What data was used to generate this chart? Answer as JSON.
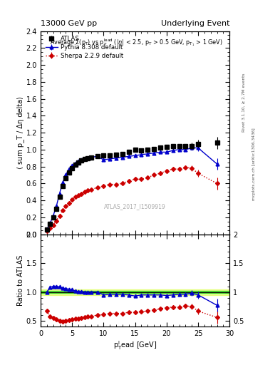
{
  "title_left": "13000 GeV pp",
  "title_right": "Underlying Event",
  "annotation": "ATLAS_2017_I1509919",
  "right_label_top": "Rivet 3.1.10, ≥ 2.7M events",
  "right_label_bot": "mcplots.cern.ch [arXiv:1306.3436]",
  "ylabel_main": "⟨ sum p_T / Δη delta⟩",
  "ylabel_ratio": "Ratio to ATLAS",
  "xlabel": "p_T^l ead [GeV]",
  "ylim_main": [
    0.0,
    2.4
  ],
  "ylim_ratio": [
    0.4,
    2.0
  ],
  "yticks_main": [
    0.0,
    0.2,
    0.4,
    0.6,
    0.8,
    1.0,
    1.2,
    1.4,
    1.6,
    1.8,
    2.0,
    2.2,
    2.4
  ],
  "yticks_ratio": [
    0.5,
    1.0,
    1.5,
    2.0
  ],
  "xlim": [
    0,
    30
  ],
  "xticks": [
    0,
    5,
    10,
    15,
    20,
    25,
    30
  ],
  "atlas_x": [
    1.0,
    1.5,
    2.0,
    2.5,
    3.0,
    3.5,
    4.0,
    4.5,
    5.0,
    5.5,
    6.0,
    6.5,
    7.0,
    7.5,
    8.0,
    9.0,
    10.0,
    11.0,
    12.0,
    13.0,
    14.0,
    15.0,
    16.0,
    17.0,
    18.0,
    19.0,
    20.0,
    21.0,
    22.0,
    23.0,
    24.0,
    25.0,
    28.0
  ],
  "atlas_y": [
    0.06,
    0.12,
    0.2,
    0.3,
    0.44,
    0.57,
    0.66,
    0.73,
    0.78,
    0.82,
    0.85,
    0.87,
    0.89,
    0.9,
    0.91,
    0.92,
    0.93,
    0.93,
    0.94,
    0.95,
    0.97,
    1.0,
    0.99,
    1.0,
    1.01,
    1.02,
    1.03,
    1.04,
    1.04,
    1.04,
    1.04,
    1.07,
    1.08
  ],
  "atlas_yerr": [
    0.01,
    0.01,
    0.01,
    0.01,
    0.01,
    0.01,
    0.01,
    0.01,
    0.01,
    0.01,
    0.01,
    0.01,
    0.01,
    0.01,
    0.01,
    0.01,
    0.01,
    0.01,
    0.01,
    0.01,
    0.01,
    0.02,
    0.02,
    0.02,
    0.02,
    0.02,
    0.02,
    0.03,
    0.03,
    0.03,
    0.04,
    0.05,
    0.07
  ],
  "pythia_x": [
    1.0,
    1.5,
    2.0,
    2.5,
    3.0,
    3.5,
    4.0,
    4.5,
    5.0,
    5.5,
    6.0,
    6.5,
    7.0,
    7.5,
    8.0,
    9.0,
    10.0,
    11.0,
    12.0,
    13.0,
    14.0,
    15.0,
    16.0,
    17.0,
    18.0,
    19.0,
    20.0,
    21.0,
    22.0,
    23.0,
    24.0,
    25.0,
    28.0
  ],
  "pythia_y": [
    0.06,
    0.13,
    0.22,
    0.33,
    0.48,
    0.61,
    0.7,
    0.77,
    0.81,
    0.84,
    0.86,
    0.88,
    0.89,
    0.9,
    0.91,
    0.92,
    0.88,
    0.89,
    0.9,
    0.91,
    0.92,
    0.93,
    0.94,
    0.95,
    0.96,
    0.97,
    0.97,
    0.99,
    1.0,
    1.0,
    1.02,
    1.02,
    0.83
  ],
  "pythia_yerr": [
    0.005,
    0.005,
    0.005,
    0.005,
    0.005,
    0.005,
    0.005,
    0.005,
    0.005,
    0.005,
    0.005,
    0.005,
    0.005,
    0.005,
    0.005,
    0.005,
    0.01,
    0.01,
    0.01,
    0.01,
    0.01,
    0.01,
    0.01,
    0.01,
    0.01,
    0.01,
    0.01,
    0.02,
    0.02,
    0.02,
    0.03,
    0.04,
    0.07
  ],
  "sherpa_x": [
    1.0,
    1.5,
    2.0,
    2.5,
    3.0,
    3.5,
    4.0,
    4.5,
    5.0,
    5.5,
    6.0,
    6.5,
    7.0,
    7.5,
    8.0,
    9.0,
    10.0,
    11.0,
    12.0,
    13.0,
    14.0,
    15.0,
    16.0,
    17.0,
    18.0,
    19.0,
    20.0,
    21.0,
    22.0,
    23.0,
    24.0,
    25.0,
    28.0
  ],
  "sherpa_y": [
    0.04,
    0.07,
    0.11,
    0.16,
    0.22,
    0.28,
    0.33,
    0.37,
    0.41,
    0.44,
    0.46,
    0.48,
    0.5,
    0.52,
    0.53,
    0.55,
    0.57,
    0.59,
    0.59,
    0.6,
    0.63,
    0.65,
    0.65,
    0.67,
    0.7,
    0.72,
    0.75,
    0.77,
    0.77,
    0.79,
    0.78,
    0.72,
    0.6
  ],
  "sherpa_yerr": [
    0.005,
    0.005,
    0.005,
    0.005,
    0.005,
    0.005,
    0.005,
    0.005,
    0.005,
    0.005,
    0.005,
    0.005,
    0.005,
    0.005,
    0.005,
    0.005,
    0.01,
    0.01,
    0.01,
    0.01,
    0.01,
    0.01,
    0.01,
    0.01,
    0.01,
    0.01,
    0.01,
    0.02,
    0.02,
    0.02,
    0.03,
    0.04,
    0.07
  ],
  "pythia_ratio_y": [
    1.0,
    1.08,
    1.1,
    1.1,
    1.09,
    1.07,
    1.06,
    1.05,
    1.04,
    1.02,
    1.01,
    1.01,
    1.0,
    1.0,
    1.0,
    1.0,
    0.95,
    0.96,
    0.96,
    0.96,
    0.95,
    0.93,
    0.95,
    0.95,
    0.95,
    0.95,
    0.94,
    0.95,
    0.96,
    0.96,
    0.98,
    0.95,
    0.77
  ],
  "pythia_ratio_yerr": [
    0.01,
    0.01,
    0.01,
    0.01,
    0.01,
    0.01,
    0.01,
    0.01,
    0.01,
    0.01,
    0.01,
    0.01,
    0.01,
    0.01,
    0.01,
    0.01,
    0.01,
    0.01,
    0.01,
    0.01,
    0.01,
    0.02,
    0.02,
    0.02,
    0.02,
    0.03,
    0.03,
    0.03,
    0.04,
    0.04,
    0.05,
    0.06,
    0.11
  ],
  "sherpa_ratio_y": [
    0.67,
    0.58,
    0.55,
    0.53,
    0.5,
    0.49,
    0.5,
    0.51,
    0.53,
    0.54,
    0.54,
    0.55,
    0.56,
    0.58,
    0.58,
    0.6,
    0.61,
    0.63,
    0.63,
    0.63,
    0.65,
    0.65,
    0.66,
    0.67,
    0.69,
    0.71,
    0.73,
    0.74,
    0.74,
    0.76,
    0.75,
    0.67,
    0.56
  ],
  "sherpa_ratio_yerr": [
    0.03,
    0.02,
    0.02,
    0.02,
    0.02,
    0.02,
    0.02,
    0.02,
    0.02,
    0.01,
    0.01,
    0.01,
    0.01,
    0.01,
    0.01,
    0.01,
    0.01,
    0.01,
    0.01,
    0.01,
    0.01,
    0.01,
    0.01,
    0.02,
    0.02,
    0.02,
    0.03,
    0.03,
    0.04,
    0.04,
    0.05,
    0.06,
    0.11
  ],
  "atlas_color": "black",
  "pythia_color": "#0000cc",
  "sherpa_color": "#cc0000",
  "band_color_outer": "#ccff00",
  "band_color_inner": "#00bb00",
  "band_alpha_inner": 0.6,
  "band_alpha_outer": 0.4
}
